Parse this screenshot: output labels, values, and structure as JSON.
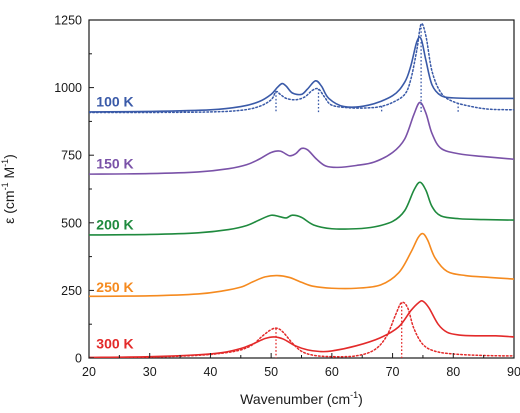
{
  "chart_data": {
    "type": "line",
    "xlabel_main": "Wavenumber (cm",
    "xlabel_sup": "-1",
    "xlabel_close": ")",
    "ylabel_main": "ε (cm",
    "ylabel_sup1": "-1",
    "ylabel_mid": " M",
    "ylabel_sup2": "-1",
    "ylabel_close": ")",
    "xlim": [
      20,
      90
    ],
    "ylim": [
      0,
      1250
    ],
    "xticks": [
      20,
      30,
      40,
      50,
      60,
      70,
      80,
      90
    ],
    "yticks": [
      0,
      250,
      500,
      750,
      1000,
      1250
    ],
    "xtick_labels": [
      "20",
      "30",
      "40",
      "50",
      "60",
      "70",
      "80",
      "90"
    ],
    "ytick_labels": [
      "0",
      "250",
      "500",
      "750",
      "1000",
      "1250"
    ],
    "grid": false,
    "series": [
      {
        "name": "100 K",
        "color": "#3a5aa8",
        "dash": "solid",
        "x": [
          20,
          30,
          40,
          45,
          48,
          50,
          51,
          51.8,
          52.5,
          53.5,
          55,
          56,
          57.3,
          58.3,
          59.5,
          62,
          66,
          70,
          72,
          73,
          74,
          74.7,
          75.5,
          76.5,
          78,
          80,
          83,
          86,
          90
        ],
        "y": [
          910,
          912,
          918,
          930,
          948,
          975,
          1000,
          1015,
          1005,
          980,
          975,
          995,
          1025,
          1005,
          960,
          930,
          935,
          970,
          1020,
          1080,
          1170,
          1180,
          1100,
          1010,
          970,
          962,
          960,
          960,
          960
        ]
      },
      {
        "name": "100 K",
        "color": "#3a5aa8",
        "dash": "dotted",
        "x": [
          20,
          30,
          40,
          45,
          48,
          50,
          50.8,
          51.5,
          52.5,
          54,
          55.5,
          56.8,
          57.8,
          58.8,
          60,
          63,
          66,
          68,
          70,
          72,
          73,
          74,
          74.7,
          75.5,
          76.5,
          78,
          80,
          83,
          86,
          90
        ],
        "y": [
          908,
          908,
          910,
          916,
          930,
          955,
          985,
          975,
          960,
          955,
          965,
          990,
          995,
          965,
          935,
          925,
          925,
          930,
          945,
          975,
          1030,
          1140,
          1235,
          1190,
          1060,
          980,
          948,
          930,
          920,
          918
        ]
      },
      {
        "name": "150 K",
        "color": "#7a52a8",
        "dash": "solid",
        "x": [
          20,
          30,
          38,
          43,
          46,
          48,
          50,
          51.5,
          53,
          54,
          55,
          56,
          57.5,
          59,
          61,
          64,
          67,
          70,
          72,
          73.5,
          74.5,
          75.5,
          76.5,
          78,
          81,
          85,
          90
        ],
        "y": [
          680,
          682,
          688,
          700,
          715,
          735,
          760,
          765,
          748,
          755,
          775,
          770,
          735,
          710,
          705,
          712,
          725,
          760,
          810,
          900,
          945,
          905,
          830,
          775,
          755,
          745,
          735
        ]
      },
      {
        "name": "200 K",
        "color": "#1f8a3e",
        "dash": "solid",
        "x": [
          20,
          30,
          38,
          43,
          46,
          48,
          50,
          51.5,
          52.5,
          53.5,
          55,
          57,
          60,
          64,
          67,
          70,
          72,
          73.5,
          74.5,
          75.5,
          76.5,
          78,
          81,
          85,
          90
        ],
        "y": [
          455,
          457,
          463,
          475,
          490,
          510,
          528,
          522,
          518,
          528,
          520,
          492,
          478,
          478,
          485,
          505,
          545,
          620,
          650,
          620,
          560,
          525,
          515,
          512,
          510
        ]
      },
      {
        "name": "250 K",
        "color": "#f58a1f",
        "dash": "solid",
        "x": [
          20,
          30,
          38,
          42,
          45,
          47,
          49,
          51,
          53,
          55,
          57,
          60,
          64,
          68,
          71,
          73,
          74.2,
          75,
          75.8,
          77,
          79,
          82,
          86,
          90
        ],
        "y": [
          228,
          230,
          237,
          248,
          262,
          282,
          300,
          305,
          298,
          280,
          265,
          258,
          258,
          270,
          315,
          390,
          445,
          460,
          435,
          370,
          320,
          305,
          298,
          292
        ]
      },
      {
        "name": "300 K",
        "color": "#e32a2a",
        "dash": "solid",
        "x": [
          20,
          30,
          38,
          42,
          45,
          47,
          49,
          50.5,
          52,
          54,
          56,
          58,
          60,
          64,
          68,
          71,
          73,
          74.3,
          75,
          76,
          77.5,
          79,
          81,
          84,
          87,
          90
        ],
        "y": [
          2,
          5,
          12,
          20,
          35,
          52,
          72,
          78,
          70,
          45,
          30,
          24,
          26,
          45,
          75,
          115,
          175,
          205,
          210,
          185,
          125,
          95,
          85,
          82,
          82,
          78
        ]
      },
      {
        "name": "300 K",
        "color": "#e32a2a",
        "dash": "dotted",
        "x": [
          20,
          30,
          38,
          42,
          45,
          47,
          48.5,
          50,
          51,
          52,
          53.5,
          55,
          57,
          60,
          64,
          67,
          69,
          70.5,
          71.5,
          72.5,
          73.5,
          75,
          77,
          80,
          84,
          88,
          90
        ],
        "y": [
          0,
          3,
          10,
          18,
          30,
          50,
          80,
          105,
          110,
          95,
          55,
          25,
          10,
          5,
          8,
          30,
          80,
          160,
          205,
          185,
          110,
          50,
          25,
          15,
          10,
          8,
          8
        ]
      }
    ],
    "peak_markers": [
      {
        "series_name": "100 K",
        "color": "#3a5aa8",
        "x": [
          50.8,
          57.8,
          68.2,
          74.7,
          80.8
        ]
      },
      {
        "series_name": "300 K",
        "color": "#e32a2a",
        "x": [
          50.8,
          60.3,
          71.5
        ]
      }
    ],
    "curve_labels": [
      {
        "text": "100 K",
        "color": "#3a5aa8",
        "x": 21.2,
        "y": 930
      },
      {
        "text": "150 K",
        "color": "#7a52a8",
        "x": 21.2,
        "y": 700
      },
      {
        "text": "200 K",
        "color": "#1f8a3e",
        "x": 21.2,
        "y": 475
      },
      {
        "text": "250 K",
        "color": "#f58a1f",
        "x": 21.2,
        "y": 245
      },
      {
        "text": "300 K",
        "color": "#e32a2a",
        "x": 21.2,
        "y": 35
      }
    ]
  }
}
